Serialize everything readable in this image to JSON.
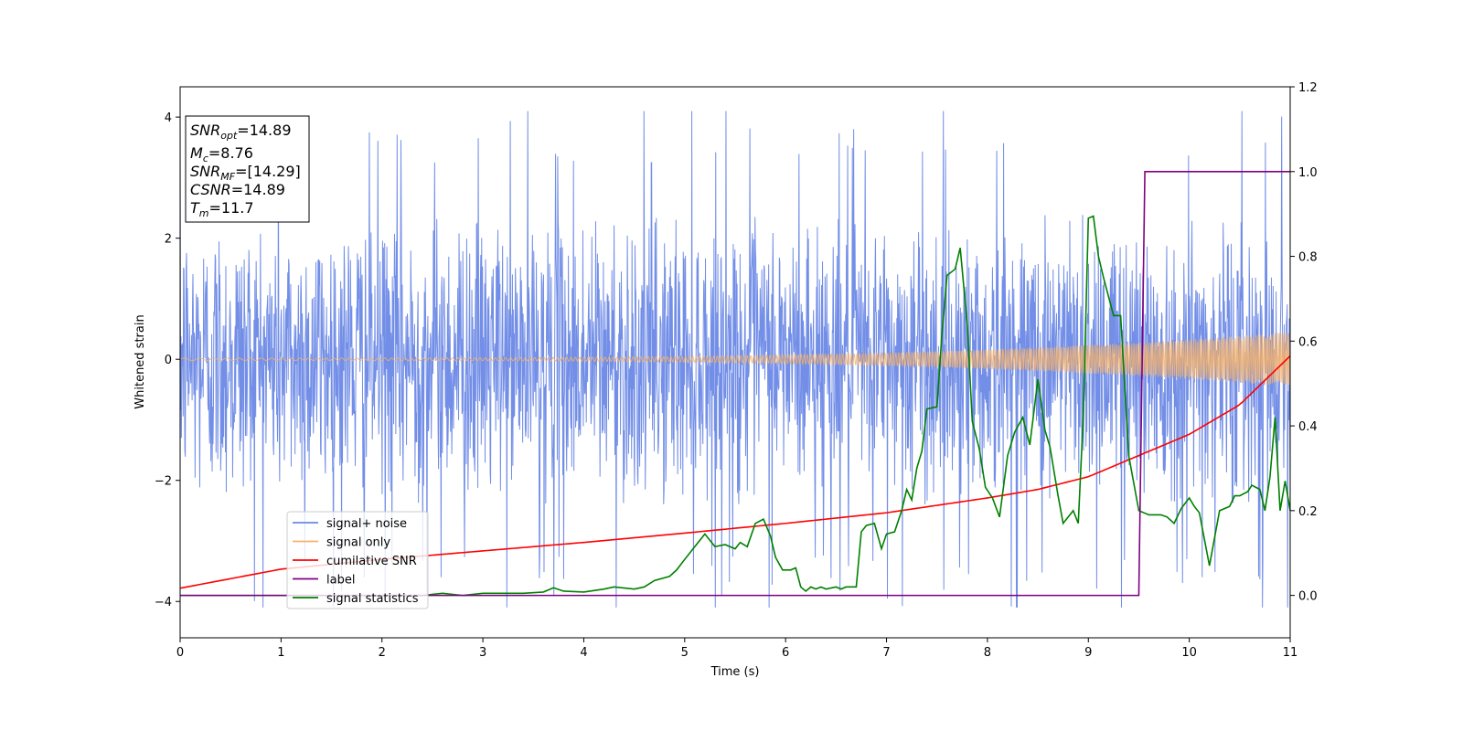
{
  "chart_data": {
    "type": "line",
    "xlabel": "Time (s)",
    "ylabel": "Whitened strain",
    "xlim": [
      0,
      11
    ],
    "ylim_left": [
      -4.6,
      4.5
    ],
    "ylim_right": [
      -0.1,
      1.2
    ],
    "x_ticks": [
      0,
      1,
      2,
      3,
      4,
      5,
      6,
      7,
      8,
      9,
      10,
      11
    ],
    "y_left_ticks": [
      -4,
      -2,
      0,
      2,
      4
    ],
    "y_left_tick_labels": [
      "−4",
      "−2",
      "0",
      "2",
      "4"
    ],
    "y_right_ticks": [
      0.0,
      0.2,
      0.4,
      0.6,
      0.8,
      1.0,
      1.2
    ],
    "y_right_tick_labels": [
      "0.0",
      "0.2",
      "0.4",
      "0.6",
      "0.8",
      "1.0",
      "1.2"
    ],
    "legend_position": "lower-left",
    "series": [
      {
        "name": "signal+ noise",
        "axis": "left",
        "color": "#6a88e6",
        "description": "dense noise, approx. range -4.1 to 4.1 centered at 0"
      },
      {
        "name": "signal only",
        "axis": "left",
        "color": "#f5b26b",
        "chirp": {
          "amplitude_start": 0.02,
          "amplitude_end": 0.45
        }
      },
      {
        "name": "cumilative SNR",
        "axis": "right",
        "color": "#ff0000",
        "x": [
          0,
          1,
          2,
          3,
          4,
          5,
          6,
          7,
          8,
          8.5,
          9,
          9.5,
          10,
          10.5,
          11
        ],
        "values": [
          0.017,
          0.062,
          0.085,
          0.105,
          0.125,
          0.147,
          0.17,
          0.195,
          0.23,
          0.25,
          0.28,
          0.33,
          0.38,
          0.45,
          0.565
        ]
      },
      {
        "name": "label",
        "axis": "right",
        "color": "#800080",
        "x": [
          0,
          9.5,
          9.56,
          11
        ],
        "values": [
          0,
          0,
          1,
          1
        ]
      },
      {
        "name": "signal statistics",
        "axis": "right",
        "color": "#008000",
        "x": [
          0,
          1,
          2,
          2.4,
          2.6,
          2.8,
          3.0,
          3.4,
          3.6,
          3.7,
          3.8,
          4.0,
          4.2,
          4.3,
          4.5,
          4.6,
          4.7,
          4.85,
          4.92,
          5.0,
          5.1,
          5.2,
          5.3,
          5.4,
          5.5,
          5.55,
          5.62,
          5.7,
          5.78,
          5.85,
          5.9,
          5.97,
          6.05,
          6.1,
          6.15,
          6.2,
          6.25,
          6.3,
          6.35,
          6.4,
          6.5,
          6.55,
          6.6,
          6.7,
          6.75,
          6.8,
          6.88,
          6.95,
          7.0,
          7.08,
          7.15,
          7.2,
          7.25,
          7.3,
          7.35,
          7.4,
          7.5,
          7.55,
          7.6,
          7.68,
          7.73,
          7.8,
          7.85,
          7.92,
          7.98,
          8.05,
          8.12,
          8.2,
          8.27,
          8.35,
          8.42,
          8.5,
          8.57,
          8.62,
          8.7,
          8.75,
          8.85,
          8.9,
          8.95,
          9.0,
          9.05,
          9.1,
          9.15,
          9.25,
          9.32,
          9.4,
          9.5,
          9.6,
          9.72,
          9.78,
          9.85,
          9.92,
          10.0,
          10.05,
          10.1,
          10.2,
          10.3,
          10.4,
          10.45,
          10.5,
          10.58,
          10.62,
          10.7,
          10.75,
          10.8,
          10.85,
          10.9,
          10.95,
          11.0
        ],
        "values": [
          0.0,
          0.0,
          0.0,
          0.0,
          0.005,
          0.0,
          0.005,
          0.005,
          0.008,
          0.018,
          0.01,
          0.008,
          0.015,
          0.02,
          0.015,
          0.02,
          0.035,
          0.045,
          0.06,
          0.085,
          0.115,
          0.145,
          0.115,
          0.12,
          0.11,
          0.125,
          0.115,
          0.17,
          0.18,
          0.14,
          0.09,
          0.06,
          0.06,
          0.065,
          0.02,
          0.01,
          0.02,
          0.015,
          0.02,
          0.015,
          0.02,
          0.015,
          0.02,
          0.02,
          0.15,
          0.165,
          0.17,
          0.11,
          0.145,
          0.15,
          0.2,
          0.25,
          0.225,
          0.3,
          0.34,
          0.44,
          0.445,
          0.62,
          0.755,
          0.77,
          0.82,
          0.64,
          0.41,
          0.345,
          0.255,
          0.23,
          0.185,
          0.33,
          0.385,
          0.42,
          0.355,
          0.51,
          0.39,
          0.35,
          0.235,
          0.17,
          0.2,
          0.17,
          0.425,
          0.89,
          0.895,
          0.8,
          0.75,
          0.66,
          0.66,
          0.33,
          0.2,
          0.19,
          0.19,
          0.185,
          0.17,
          0.205,
          0.23,
          0.21,
          0.195,
          0.07,
          0.2,
          0.21,
          0.235,
          0.235,
          0.245,
          0.26,
          0.25,
          0.2,
          0.28,
          0.42,
          0.2,
          0.27,
          0.2
        ]
      }
    ]
  },
  "info_box": {
    "line1_main": "SNR",
    "line1_sub": "opt",
    "line1_value": "=14.89",
    "line2_main": "M",
    "line2_sub": "c",
    "line2_value": "=8.76",
    "line3_main": "SNR",
    "line3_sub": "MF",
    "line3_value": "=[14.29]",
    "line4_main": "CSNR",
    "line4_value": "=14.89",
    "line5_main": "T",
    "line5_sub": "m",
    "line5_value": "=11.7"
  }
}
